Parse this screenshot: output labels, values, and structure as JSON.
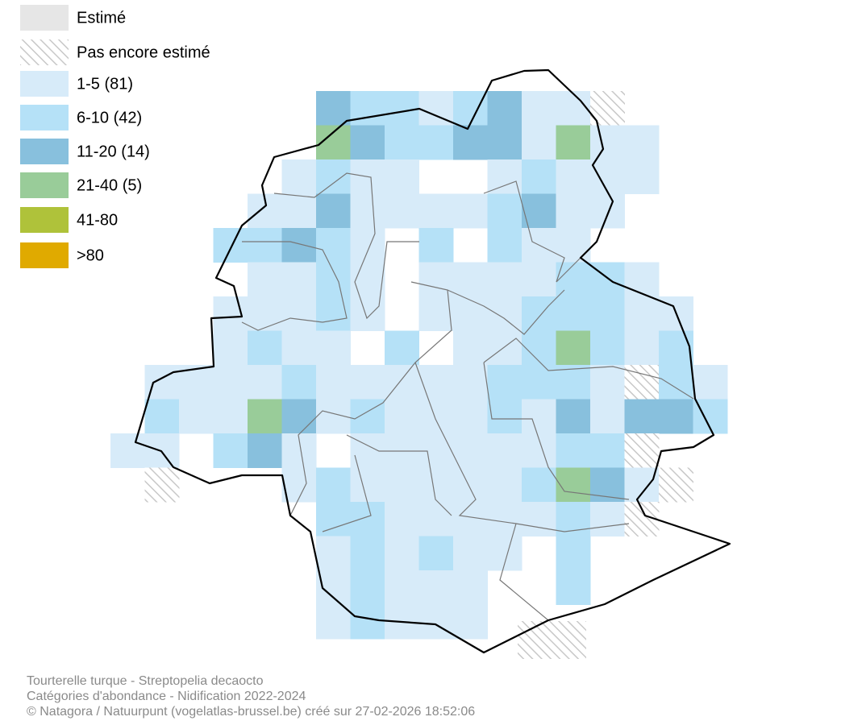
{
  "legend": {
    "items": [
      {
        "label": "Estimé",
        "color": "#e6e6e6"
      },
      {
        "label": "Pas encore estimé",
        "color": "#cccccc",
        "pattern": "hatch"
      },
      {
        "label": "1-5 (81)",
        "color": "#d7ebf9"
      },
      {
        "label": "6-10 (42)",
        "color": "#b5e1f7"
      },
      {
        "label": "11-20 (14)",
        "color": "#88c0dd"
      },
      {
        "label": "21-40 (5)",
        "color": "#99cc99"
      },
      {
        "label": "41-80",
        "color": "#afc23a"
      },
      {
        "label": ">80",
        "color": "#e0aa00"
      }
    ]
  },
  "footer": {
    "lines": [
      "Tourterelle turque - Streptopelia decaocto",
      "Catégories d'abondance - Nidification 2022-2024",
      "© Natagora / Natuurpunt (vogelatlas-brussel.be) créé sur 27-02-2026 18:52:06"
    ]
  }
}
